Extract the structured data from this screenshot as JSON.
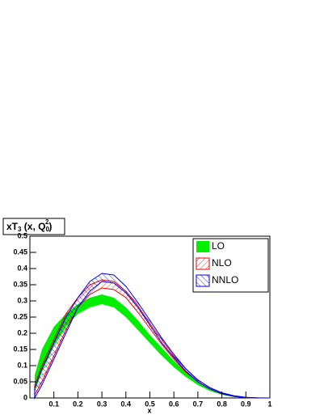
{
  "chart_data": {
    "type": "band",
    "title": {
      "main": "xT",
      "sub": "3",
      "mid": " (x, Q",
      "sub2": "0",
      "sup": "2",
      "end": ")"
    },
    "x_label": "x",
    "xlim": [
      0,
      1
    ],
    "ylim": [
      0,
      0.5
    ],
    "xticks": [
      0.1,
      0.2,
      0.3,
      0.4,
      0.5,
      0.6,
      0.7,
      0.8,
      0.9,
      1
    ],
    "yticks": [
      0,
      0.05,
      0.1,
      0.15,
      0.2,
      0.25,
      0.3,
      0.35,
      0.4,
      0.45,
      0.5
    ],
    "legend": "top-right",
    "x": [
      0.02,
      0.05,
      0.1,
      0.15,
      0.2,
      0.25,
      0.3,
      0.35,
      0.4,
      0.45,
      0.5,
      0.55,
      0.6,
      0.65,
      0.7,
      0.75,
      0.8,
      0.85,
      0.9,
      0.95,
      1
    ],
    "series": [
      {
        "name": "LO",
        "color": "#00ee00",
        "fill": "solid",
        "lower": [
          0.02,
          0.08,
          0.16,
          0.22,
          0.26,
          0.28,
          0.29,
          0.28,
          0.25,
          0.21,
          0.17,
          0.13,
          0.095,
          0.065,
          0.04,
          0.022,
          0.01,
          0.003,
          0.001,
          0,
          0
        ],
        "upper": [
          0.07,
          0.15,
          0.22,
          0.26,
          0.29,
          0.31,
          0.32,
          0.31,
          0.28,
          0.24,
          0.195,
          0.155,
          0.115,
          0.08,
          0.05,
          0.03,
          0.015,
          0.006,
          0.002,
          0,
          0
        ]
      },
      {
        "name": "NLO",
        "color": "#ee0000",
        "fill": "hatch-down",
        "lower": [
          0.01,
          0.05,
          0.13,
          0.21,
          0.28,
          0.32,
          0.34,
          0.335,
          0.31,
          0.265,
          0.215,
          0.165,
          0.12,
          0.08,
          0.05,
          0.028,
          0.013,
          0.005,
          0.001,
          0,
          0
        ],
        "upper": [
          0.04,
          0.1,
          0.18,
          0.26,
          0.31,
          0.35,
          0.365,
          0.36,
          0.33,
          0.285,
          0.23,
          0.18,
          0.13,
          0.09,
          0.055,
          0.032,
          0.016,
          0.007,
          0.002,
          0,
          0
        ]
      },
      {
        "name": "NNLO",
        "color": "#0000ee",
        "fill": "hatch-up",
        "lower": [
          0,
          0.04,
          0.12,
          0.2,
          0.28,
          0.33,
          0.36,
          0.355,
          0.325,
          0.28,
          0.225,
          0.17,
          0.125,
          0.083,
          0.05,
          0.028,
          0.013,
          0.005,
          0.001,
          0,
          0
        ],
        "upper": [
          0.03,
          0.09,
          0.17,
          0.25,
          0.31,
          0.36,
          0.385,
          0.38,
          0.345,
          0.295,
          0.24,
          0.185,
          0.135,
          0.09,
          0.056,
          0.032,
          0.016,
          0.007,
          0.002,
          0.0005,
          0
        ]
      }
    ]
  }
}
